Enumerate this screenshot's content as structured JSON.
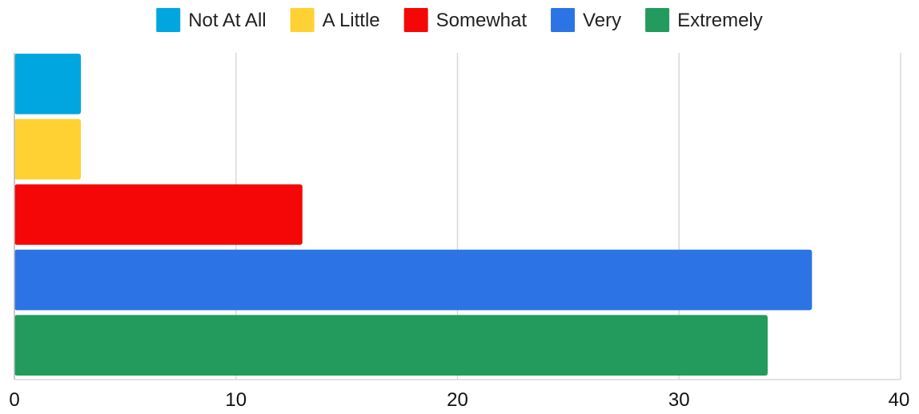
{
  "chart_data": {
    "type": "bar",
    "orientation": "horizontal",
    "title": "",
    "xlabel": "",
    "ylabel": "",
    "xlim": [
      0,
      40
    ],
    "x_ticks": [
      0,
      10,
      20,
      30,
      40
    ],
    "grid": true,
    "legend_position": "top",
    "series": [
      {
        "name": "Not At All",
        "value": 3,
        "color": "#00A6E0"
      },
      {
        "name": "A Little",
        "value": 3,
        "color": "#FFD133"
      },
      {
        "name": "Somewhat",
        "value": 13,
        "color": "#F60707"
      },
      {
        "name": "Very",
        "value": 36,
        "color": "#2C73E6"
      },
      {
        "name": "Extremely",
        "value": 34,
        "color": "#229B5C"
      }
    ]
  }
}
